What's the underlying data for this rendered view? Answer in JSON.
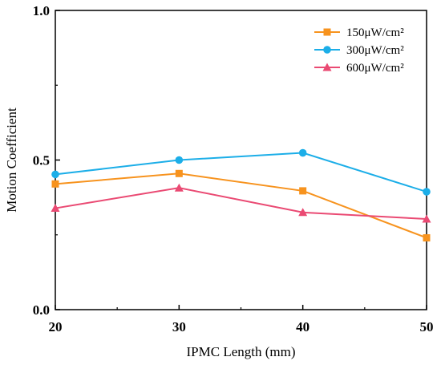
{
  "chart_data": {
    "type": "line",
    "title": "",
    "xlabel": "IPMC Length (mm)",
    "ylabel": "Motion Coefficient",
    "x": [
      20,
      30,
      40,
      50
    ],
    "xlim": [
      20,
      50
    ],
    "ylim": [
      0.0,
      1.0
    ],
    "xticks": [
      "20",
      "30",
      "40",
      "50"
    ],
    "yticks": [
      "0.0",
      "0.5",
      "1.0"
    ],
    "grid": false,
    "legend": "top-right",
    "series": [
      {
        "name": "150μW/cm²",
        "values": [
          0.42,
          0.455,
          0.397,
          0.24
        ],
        "color": "#f7931e",
        "marker": "square"
      },
      {
        "name": "300μW/cm²",
        "values": [
          0.452,
          0.5,
          0.524,
          0.394
        ],
        "color": "#1caee8",
        "marker": "circle"
      },
      {
        "name": "600μW/cm²",
        "values": [
          0.339,
          0.407,
          0.325,
          0.303
        ],
        "color": "#ea4a73",
        "marker": "triangle"
      }
    ]
  }
}
